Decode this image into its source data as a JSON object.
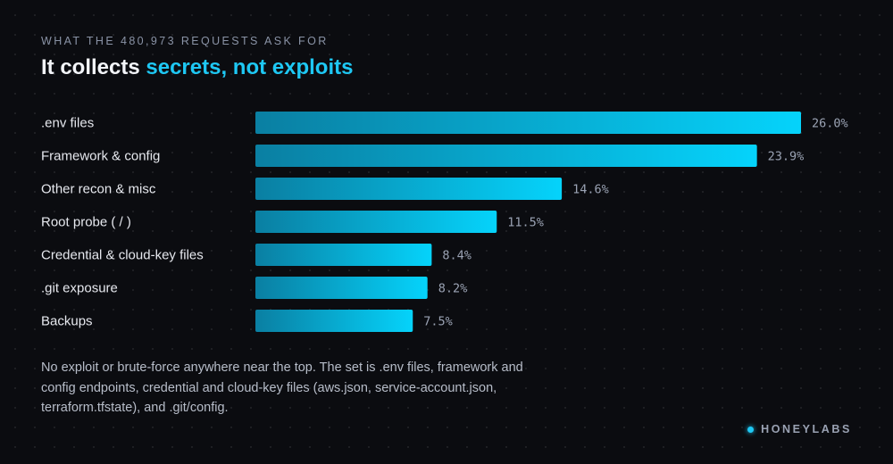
{
  "header": {
    "eyebrow": "WHAT THE 480,973 REQUESTS ASK FOR",
    "title_prefix": "It collects ",
    "title_accent": "secrets, not exploits"
  },
  "colors": {
    "bar_start": "#0a7fa2",
    "bar_end": "#05d3fb",
    "category_text": "#e6e8ee",
    "value_text": "#9ba3b4",
    "accent": "#1ec8f4",
    "background": "#0b0c10"
  },
  "chart_data": {
    "type": "bar",
    "orientation": "horizontal",
    "categories": [
      ".env files",
      "Framework & config",
      "Other recon & misc",
      "Root probe ( / )",
      "Credential & cloud-key files",
      ".git exposure",
      "Backups"
    ],
    "values": [
      26.0,
      23.9,
      14.6,
      11.5,
      8.4,
      8.2,
      7.5
    ],
    "value_labels": [
      "26.0%",
      "23.9%",
      "14.6%",
      "11.5%",
      "8.4%",
      "8.2%",
      "7.5%"
    ],
    "unit": "%",
    "xlim": [
      0,
      26
    ],
    "grid": false,
    "legend": "none"
  },
  "footnote": "No exploit or brute-force anywhere near the top. The set is .env files, framework and config endpoints, credential and cloud-key files (aws.json, service-account.json, terraform.tfstate), and .git/config.",
  "brand": {
    "name": "HONEYLABS",
    "icon": "dot-icon"
  }
}
